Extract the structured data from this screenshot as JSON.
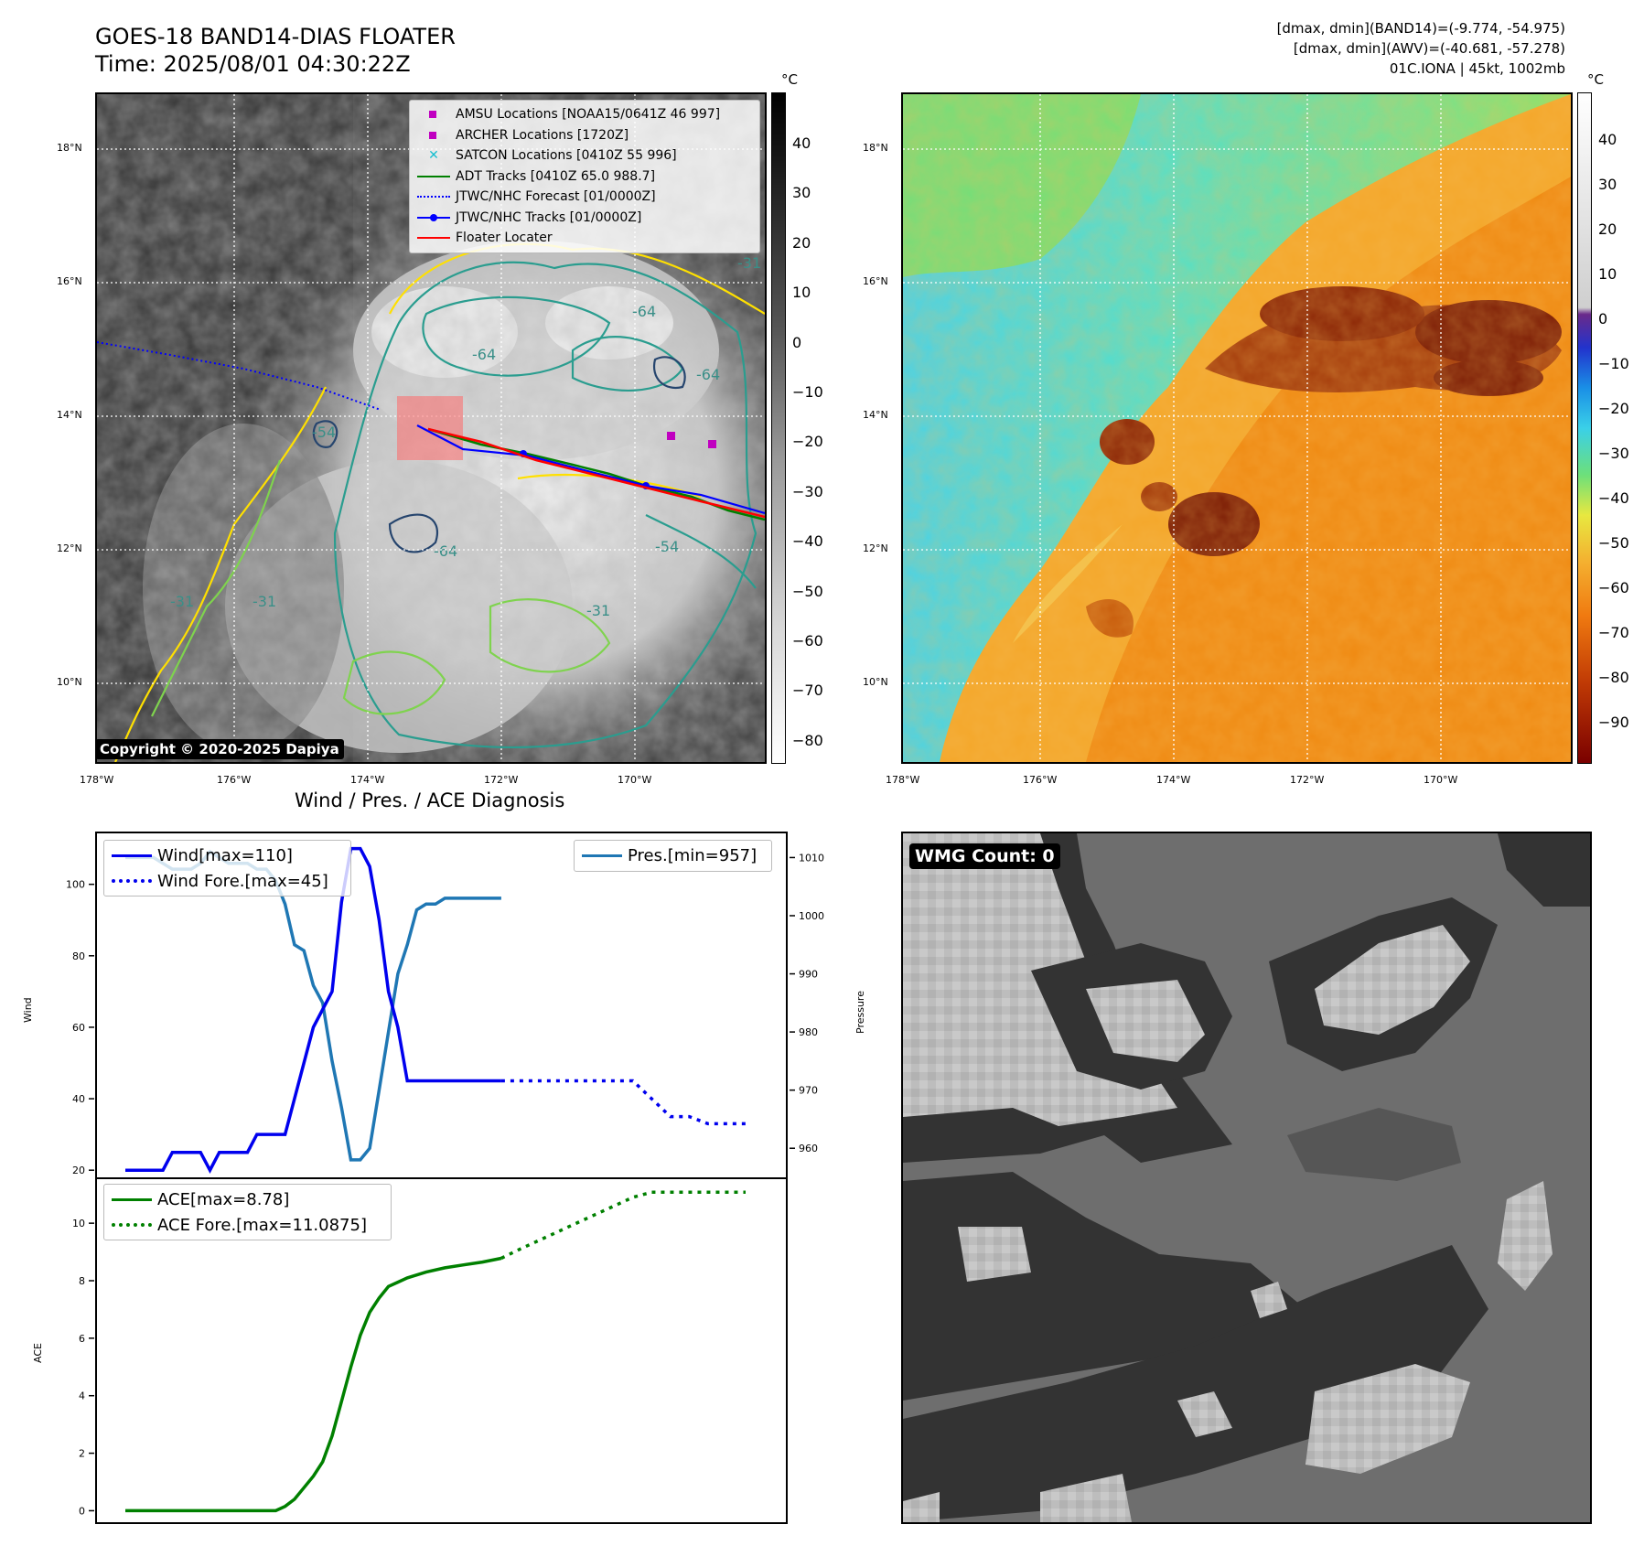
{
  "header": {
    "title_line1": "GOES-18 BAND14-DIAS FLOATER",
    "title_line2": "Time: 2025/08/01 04:30:22Z",
    "info_line1": "[dmax, dmin](BAND14)=(-9.774, -54.975)",
    "info_line2": "[dmax, dmin](AWV)=(-40.681, -57.278)",
    "info_line3": "01C.IONA | 45kt, 1002mb"
  },
  "map": {
    "lat_labels": [
      "18°N",
      "16°N",
      "14°N",
      "12°N",
      "10°N"
    ],
    "lon_labels": [
      "178°W",
      "176°W",
      "174°W",
      "172°W",
      "170°W"
    ],
    "copyright": "Copyright © 2020-2025 Dapiya",
    "contour_labels": [
      "-64",
      "-64",
      "-64",
      "-64",
      "-54",
      "-31",
      "-31",
      "-31",
      "-54",
      "-31"
    ],
    "legend": [
      {
        "label": "AMSU Locations [NOAA15/0641Z 46 997]",
        "symbol": "square",
        "color": "#c000c0"
      },
      {
        "label": "ARCHER Locations [1720Z]",
        "symbol": "square",
        "color": "#c000c0"
      },
      {
        "label": "SATCON Locations [0410Z 55 996]",
        "symbol": "x",
        "color": "#17becf"
      },
      {
        "label": "ADT Tracks [0410Z 65.0 988.7]",
        "symbol": "line",
        "color": "#008000"
      },
      {
        "label": "JTWC/NHC Forecast [01/0000Z]",
        "symbol": "dotted",
        "color": "#0000ff"
      },
      {
        "label": "JTWC/NHC Tracks [01/0000Z]",
        "symbol": "line-dot",
        "color": "#0000ff"
      },
      {
        "label": "Floater Locater",
        "symbol": "line",
        "color": "#ff0000"
      }
    ]
  },
  "colorbar_gray": {
    "unit": "°C",
    "ticks": [
      "40",
      "30",
      "20",
      "10",
      "0",
      "−10",
      "−20",
      "−30",
      "−40",
      "−50",
      "−60",
      "−70",
      "−80"
    ]
  },
  "colorbar_color": {
    "unit": "°C",
    "ticks": [
      "40",
      "30",
      "20",
      "10",
      "0",
      "−10",
      "−20",
      "−30",
      "−40",
      "−50",
      "−60",
      "−70",
      "−80",
      "−90"
    ]
  },
  "diagnosis": {
    "title": "Wind / Pres. / ACE Diagnosis",
    "wind_legend": [
      "Wind[max=110]",
      "Wind Fore.[max=45]"
    ],
    "pres_legend": "Pres.[min=957]",
    "ace_legend": [
      "ACE[max=8.78]",
      "ACE Fore.[max=11.0875]"
    ],
    "ylabel_wind": "Wind",
    "ylabel_pres": "Pressure",
    "ylabel_ace": "ACE"
  },
  "wmg": {
    "label": "WMG Count: 0"
  },
  "colors": {
    "wind": "#0000ee",
    "pressure": "#1f77b4",
    "ace": "#008000",
    "floater": "#ff0000"
  },
  "chart_data": [
    {
      "type": "line",
      "ylabel": "Wind",
      "ylim": [
        18,
        114
      ],
      "yticks": [
        20,
        40,
        60,
        80,
        100
      ],
      "series": [
        {
          "name": "Wind[max=110]",
          "style": "solid",
          "x": [
            0,
            1,
            2,
            3,
            4,
            5,
            6,
            7,
            8,
            9,
            10,
            11,
            12,
            13,
            14,
            15,
            16,
            17,
            18,
            19,
            20,
            21,
            22,
            23,
            24,
            25,
            26,
            27,
            28,
            29,
            30,
            31,
            32,
            33,
            34,
            35,
            36,
            37,
            38,
            39,
            40
          ],
          "values": [
            20,
            20,
            20,
            20,
            20,
            25,
            25,
            25,
            25,
            20,
            25,
            25,
            25,
            25,
            30,
            30,
            30,
            30,
            40,
            50,
            60,
            65,
            70,
            95,
            110,
            110,
            105,
            90,
            70,
            60,
            45,
            45,
            45,
            45,
            45,
            45,
            45,
            45,
            45,
            45,
            45
          ]
        },
        {
          "name": "Wind Fore.[max=45]",
          "style": "dotted",
          "x": [
            40,
            42,
            44,
            46,
            48,
            50,
            52,
            54,
            56,
            58,
            60,
            62,
            64,
            66
          ],
          "values": [
            45,
            45,
            45,
            45,
            45,
            45,
            45,
            45,
            40,
            35,
            35,
            33,
            33,
            33
          ]
        }
      ]
    },
    {
      "type": "line",
      "ylabel": "Pressure",
      "ylim": [
        955,
        1014
      ],
      "yticks": [
        960,
        970,
        980,
        990,
        1000,
        1010
      ],
      "series": [
        {
          "name": "Pres.[min=957]",
          "style": "solid",
          "x": [
            0,
            1,
            2,
            3,
            4,
            5,
            6,
            7,
            8,
            9,
            10,
            11,
            12,
            13,
            14,
            15,
            16,
            17,
            18,
            19,
            20,
            21,
            22,
            23,
            24,
            25,
            26,
            27,
            28,
            29,
            30,
            31,
            32,
            33,
            34,
            35,
            36,
            37,
            38,
            39,
            40
          ],
          "values": [
            1010,
            1010,
            1010,
            1010,
            1009,
            1008,
            1008,
            1008,
            1009,
            1011,
            1010,
            1009,
            1009,
            1009,
            1008,
            1008,
            1006,
            1002,
            995,
            994,
            988,
            985,
            975,
            967,
            958,
            958,
            960,
            970,
            980,
            990,
            995,
            1001,
            1002,
            1002,
            1003,
            1003,
            1003,
            1003,
            1003,
            1003,
            1003
          ]
        }
      ]
    },
    {
      "type": "line",
      "ylabel": "ACE",
      "ylim": [
        -0.4,
        11.5
      ],
      "yticks": [
        0,
        2,
        4,
        6,
        8,
        10
      ],
      "series": [
        {
          "name": "ACE[max=8.78]",
          "style": "solid",
          "x": [
            0,
            4,
            8,
            12,
            14,
            16,
            17,
            18,
            19,
            20,
            21,
            22,
            23,
            24,
            25,
            26,
            27,
            28,
            29,
            30,
            32,
            34,
            36,
            38,
            40
          ],
          "values": [
            0,
            0,
            0,
            0,
            0,
            0,
            0.15,
            0.4,
            0.8,
            1.2,
            1.7,
            2.6,
            3.8,
            5.0,
            6.1,
            6.9,
            7.4,
            7.8,
            7.95,
            8.1,
            8.3,
            8.45,
            8.55,
            8.65,
            8.78
          ]
        },
        {
          "name": "ACE Fore.[max=11.0875]",
          "style": "dotted",
          "x": [
            40,
            42,
            44,
            46,
            48,
            50,
            52,
            54,
            56,
            58,
            60,
            62,
            64,
            66
          ],
          "values": [
            8.78,
            9.1,
            9.4,
            9.7,
            10.0,
            10.3,
            10.6,
            10.9,
            11.08,
            11.08,
            11.08,
            11.08,
            11.08,
            11.08
          ]
        }
      ]
    }
  ]
}
